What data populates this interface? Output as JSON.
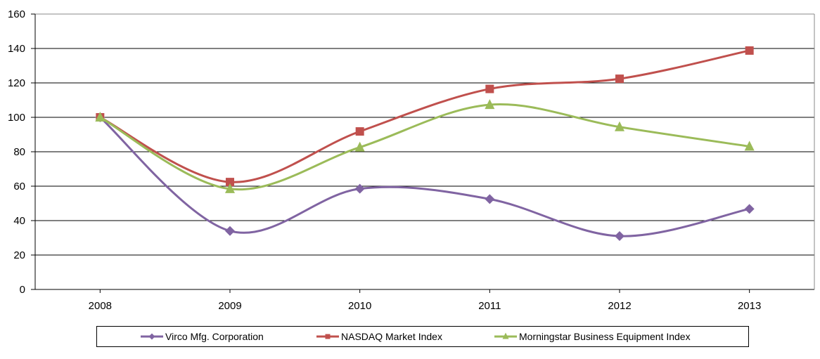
{
  "chart_data": {
    "type": "line",
    "title": "",
    "xlabel": "",
    "ylabel": "",
    "categories": [
      "2008",
      "2009",
      "2010",
      "2011",
      "2012",
      "2013"
    ],
    "ylim": [
      0,
      160
    ],
    "yticks": [
      0,
      20,
      40,
      60,
      80,
      100,
      120,
      140,
      160
    ],
    "grid": true,
    "smooth": true,
    "legend_position": "bottom",
    "series": [
      {
        "name": "Virco Mfg. Corporation",
        "marker": "diamond",
        "color": "#8064A2",
        "values": [
          100,
          34,
          58.5,
          52.5,
          31,
          46.8
        ]
      },
      {
        "name": "NASDAQ Market Index",
        "marker": "square",
        "color": "#C0504D",
        "values": [
          100,
          62.4,
          91.8,
          116.5,
          122.4,
          138.8
        ]
      },
      {
        "name": "Morningstar Business Equipment Index",
        "marker": "triangle",
        "color": "#9BBB59",
        "values": [
          100,
          58.4,
          82.6,
          107.3,
          94.4,
          83.1
        ]
      }
    ]
  }
}
